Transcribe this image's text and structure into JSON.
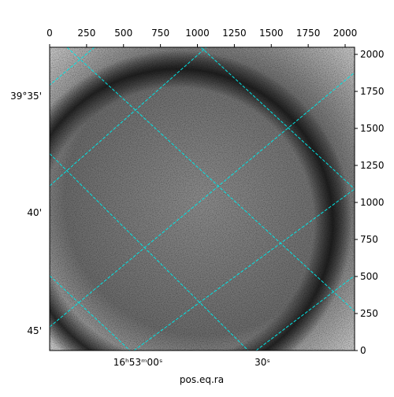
{
  "chart_data": {
    "type": "image",
    "x_label": "pos.eq.ra",
    "xlim": [
      0,
      2064
    ],
    "xticks": [
      0,
      250,
      500,
      750,
      1000,
      1250,
      1500,
      1750,
      2000
    ],
    "ylim": [
      0,
      2048
    ],
    "yticks": [
      0,
      250,
      500,
      750,
      1000,
      1250,
      1500,
      1750,
      2000
    ],
    "dec_tick_labels": [
      "39°35'",
      "40'",
      "45'"
    ],
    "ra_tick_labels": [
      "16ʰ53ᵐ00ˢ",
      "30ˢ"
    ],
    "grid_color": "#00e5e5"
  }
}
